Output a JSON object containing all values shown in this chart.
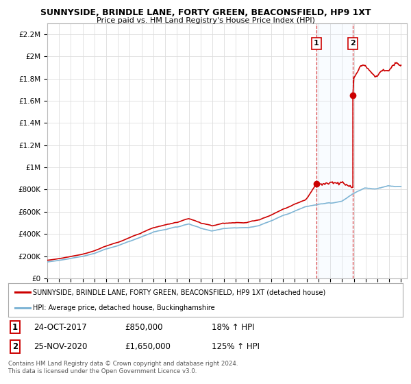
{
  "title": "SUNNYSIDE, BRINDLE LANE, FORTY GREEN, BEACONSFIELD, HP9 1XT",
  "subtitle": "Price paid vs. HM Land Registry's House Price Index (HPI)",
  "ylabel_ticks": [
    "£0",
    "£200K",
    "£400K",
    "£600K",
    "£800K",
    "£1M",
    "£1.2M",
    "£1.4M",
    "£1.6M",
    "£1.8M",
    "£2M",
    "£2.2M"
  ],
  "ytick_values": [
    0,
    200000,
    400000,
    600000,
    800000,
    1000000,
    1200000,
    1400000,
    1600000,
    1800000,
    2000000,
    2200000
  ],
  "ylim": [
    0,
    2300000
  ],
  "xlim_start": 1995.0,
  "xlim_end": 2025.5,
  "hpi_color": "#7fb5d5",
  "price_color": "#cc0000",
  "sale1_x": 2017.82,
  "sale1_y": 850000,
  "sale2_x": 2020.92,
  "sale2_y": 1650000,
  "legend_property": "SUNNYSIDE, BRINDLE LANE, FORTY GREEN, BEACONSFIELD, HP9 1XT (detached house)",
  "legend_hpi": "HPI: Average price, detached house, Buckinghamshire",
  "table_row1": [
    "1",
    "24-OCT-2017",
    "£850,000",
    "18% ↑ HPI"
  ],
  "table_row2": [
    "2",
    "25-NOV-2020",
    "£1,650,000",
    "125% ↑ HPI"
  ],
  "footnote": "Contains HM Land Registry data © Crown copyright and database right 2024.\nThis data is licensed under the Open Government Licence v3.0.",
  "background_color": "#ffffff",
  "grid_color": "#dddddd",
  "shade_color": "#ddeeff"
}
